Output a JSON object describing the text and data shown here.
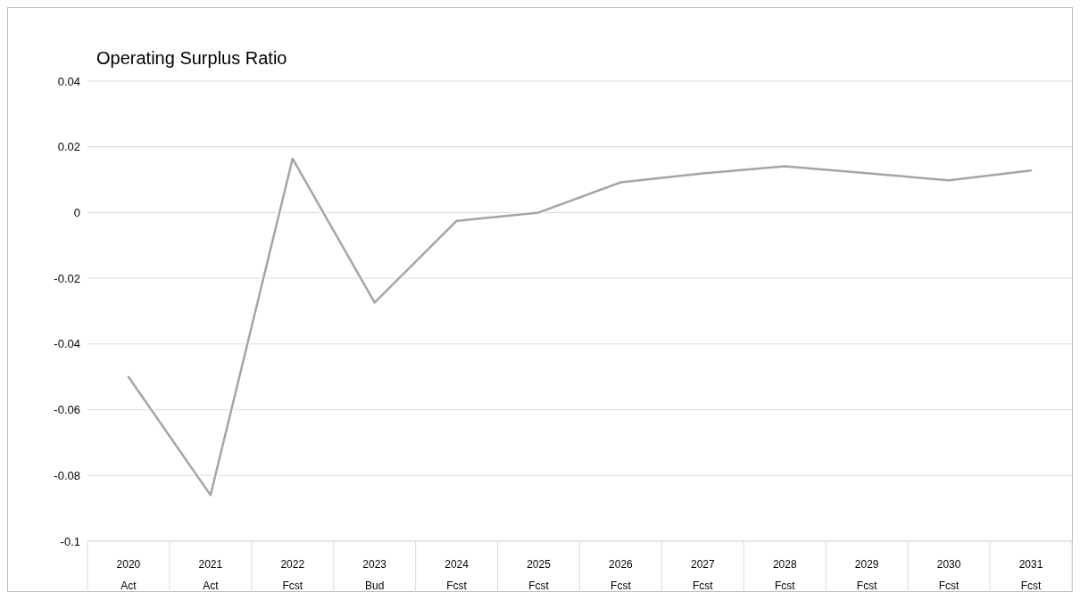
{
  "chart_data": {
    "type": "line",
    "title": "Operating Surplus Ratio",
    "categories": [
      "2020\nAct",
      "2021\nAct",
      "2022\nFcst",
      "2023\nBud",
      "2024\nFcst",
      "2025\nFcst",
      "2026\nFcst",
      "2027\nFcst",
      "2028\nFcst",
      "2029\nFcst",
      "2030\nFcst",
      "2031\nFcst"
    ],
    "series": [
      {
        "color": "#a5a5a5",
        "values": [
          -0.05,
          -0.086,
          0.0164,
          -0.0274,
          -0.0025,
          0,
          0.0092,
          0.0119,
          0.0141,
          0.012,
          0.0098,
          0.0128
        ]
      }
    ],
    "ylim": [
      -0.1,
      0.04
    ],
    "yticks": [
      -0.1,
      -0.08,
      -0.06,
      -0.04,
      -0.02,
      0,
      0.02,
      0.04
    ],
    "grid": "y",
    "marker": "none",
    "line_style": "solid"
  }
}
